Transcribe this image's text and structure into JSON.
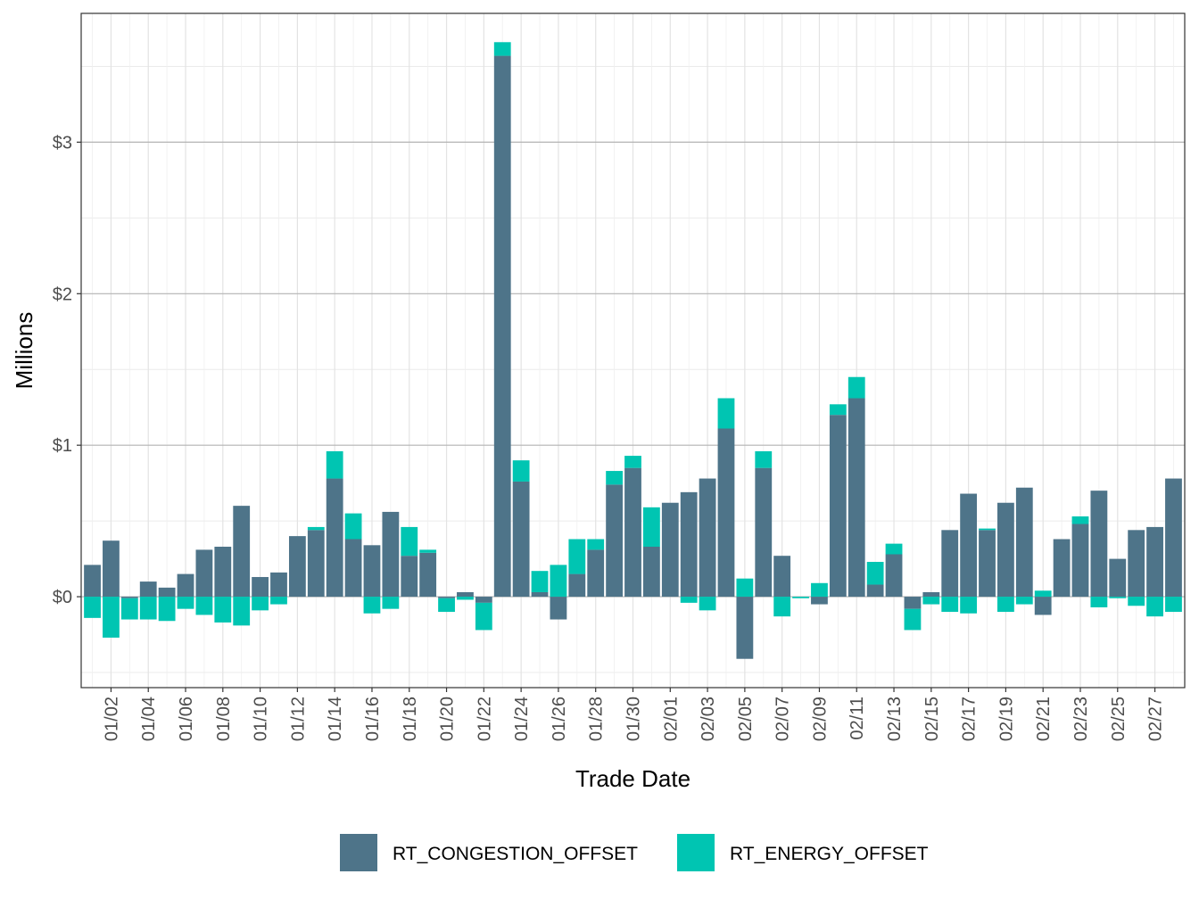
{
  "chart_data": {
    "type": "bar",
    "stacked": true,
    "xlabel": "Trade Date",
    "ylabel": "Millions",
    "ylim": [
      -0.6,
      3.85
    ],
    "y_ticks": [
      0,
      1,
      2,
      3
    ],
    "y_tick_labels": [
      "$0",
      "$1",
      "$2",
      "$3"
    ],
    "grid": true,
    "legend_position": "bottom",
    "categories": [
      "01/01",
      "01/02",
      "01/03",
      "01/04",
      "01/05",
      "01/06",
      "01/07",
      "01/08",
      "01/09",
      "01/10",
      "01/11",
      "01/12",
      "01/13",
      "01/14",
      "01/15",
      "01/16",
      "01/17",
      "01/18",
      "01/19",
      "01/20",
      "01/21",
      "01/22",
      "01/23",
      "01/24",
      "01/25",
      "01/26",
      "01/27",
      "01/28",
      "01/29",
      "01/30",
      "01/31",
      "02/01",
      "02/02",
      "02/03",
      "02/04",
      "02/05",
      "02/06",
      "02/07",
      "02/08",
      "02/09",
      "02/10",
      "02/11",
      "02/12",
      "02/13",
      "02/14",
      "02/15",
      "02/16",
      "02/17",
      "02/18",
      "02/19",
      "02/20",
      "02/21",
      "02/22",
      "02/23",
      "02/24",
      "02/25",
      "02/26",
      "02/27",
      "02/28"
    ],
    "x_tick_labels": [
      "01/02",
      "01/04",
      "01/06",
      "01/08",
      "01/10",
      "01/12",
      "01/14",
      "01/16",
      "01/18",
      "01/20",
      "01/22",
      "01/24",
      "01/26",
      "01/28",
      "01/30",
      "02/01",
      "02/03",
      "02/05",
      "02/07",
      "02/09",
      "02/11",
      "02/13",
      "02/15",
      "02/17",
      "02/19",
      "02/21",
      "02/23",
      "02/25",
      "02/27"
    ],
    "series": [
      {
        "name": "RT_CONGESTION_OFFSET",
        "color": "#4e7489",
        "values": [
          0.21,
          0.37,
          -0.01,
          0.1,
          0.06,
          0.15,
          0.31,
          0.33,
          0.6,
          0.13,
          0.16,
          0.4,
          0.44,
          0.78,
          0.38,
          0.34,
          0.56,
          0.27,
          0.29,
          -0.01,
          0.03,
          -0.04,
          3.57,
          0.76,
          0.03,
          -0.15,
          0.15,
          0.31,
          0.74,
          0.85,
          0.33,
          0.62,
          0.69,
          0.78,
          1.11,
          -0.41,
          0.85,
          0.27,
          0.0,
          -0.05,
          1.2,
          1.31,
          0.08,
          0.28,
          -0.08,
          0.03,
          0.44,
          0.68,
          0.44,
          0.62,
          0.72,
          -0.12,
          0.38,
          0.48,
          0.7,
          0.25,
          0.44,
          0.46,
          0.78
        ]
      },
      {
        "name": "RT_ENERGY_OFFSET",
        "color": "#00c5b2",
        "values": [
          -0.14,
          -0.27,
          -0.14,
          -0.15,
          -0.16,
          -0.08,
          -0.12,
          -0.17,
          -0.19,
          -0.09,
          -0.05,
          0.0,
          0.02,
          0.18,
          0.17,
          -0.11,
          -0.08,
          0.19,
          0.02,
          -0.09,
          -0.02,
          -0.18,
          0.09,
          0.14,
          0.14,
          0.21,
          0.23,
          0.07,
          0.09,
          0.08,
          0.26,
          0.0,
          -0.04,
          -0.09,
          0.2,
          0.12,
          0.11,
          -0.13,
          -0.01,
          0.09,
          0.07,
          0.14,
          0.15,
          0.07,
          -0.14,
          -0.05,
          -0.1,
          -0.11,
          0.01,
          -0.1,
          -0.05,
          0.04,
          0.0,
          0.05,
          -0.07,
          -0.01,
          -0.06,
          -0.13,
          -0.1
        ]
      }
    ]
  }
}
